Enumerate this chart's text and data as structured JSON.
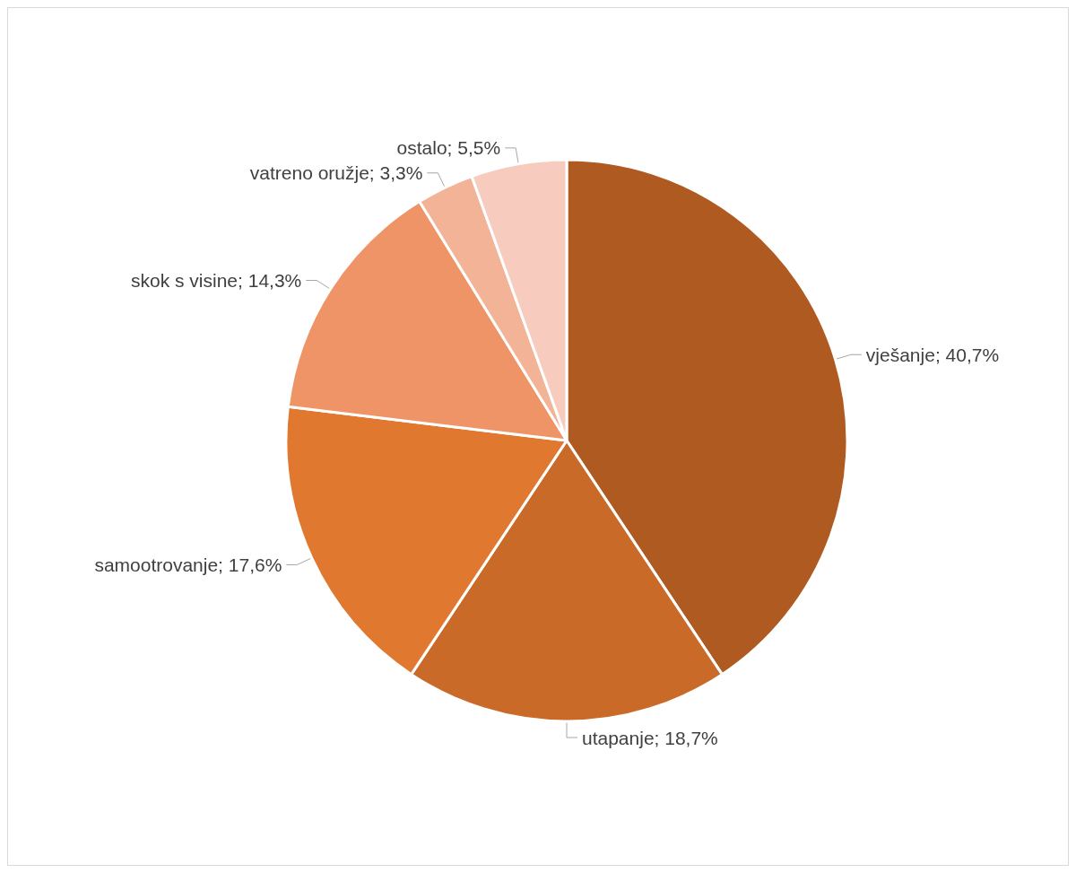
{
  "chart_data": {
    "type": "pie",
    "categories": [
      "vješanje",
      "utapanje",
      "samootrovanje",
      "skok s visine",
      "vatreno oružje",
      "ostalo"
    ],
    "values": [
      40.7,
      18.7,
      17.6,
      14.3,
      3.3,
      5.5
    ],
    "value_labels": [
      "40,7%",
      "18,7%",
      "17,6%",
      "14,3%",
      "3,3%",
      "5,5%"
    ],
    "colors": [
      "#ae5a21",
      "#c96a28",
      "#e07830",
      "#ef9467",
      "#f3b397",
      "#f7cbbd"
    ],
    "legend": false
  }
}
